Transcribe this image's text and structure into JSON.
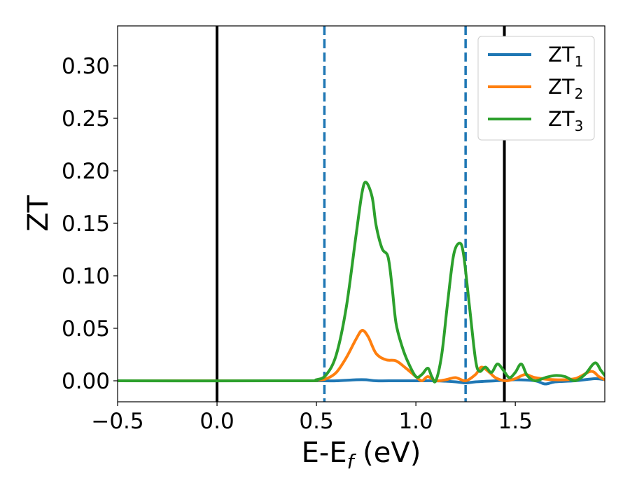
{
  "chart_data": {
    "type": "line",
    "xlabel": {
      "main": "E-E",
      "sub": "f",
      "unit": " (eV)"
    },
    "ylabel": "ZT",
    "xlim": [
      -0.5,
      1.95
    ],
    "ylim": [
      -0.02,
      0.338
    ],
    "xticks": [
      {
        "value": -0.5,
        "label": "−0.5"
      },
      {
        "value": 0.0,
        "label": "0.0"
      },
      {
        "value": 0.5,
        "label": "0.5"
      },
      {
        "value": 1.0,
        "label": "1.0"
      },
      {
        "value": 1.5,
        "label": "1.5"
      }
    ],
    "yticks": [
      {
        "value": 0.0,
        "label": "0.00"
      },
      {
        "value": 0.05,
        "label": "0.05"
      },
      {
        "value": 0.1,
        "label": "0.10"
      },
      {
        "value": 0.15,
        "label": "0.15"
      },
      {
        "value": 0.2,
        "label": "0.20"
      },
      {
        "value": 0.25,
        "label": "0.25"
      },
      {
        "value": 0.3,
        "label": "0.30"
      }
    ],
    "grid": false,
    "legend_position": "top-right",
    "vertical_lines": [
      {
        "x": 0.0,
        "style": "solid",
        "color": "#000000"
      },
      {
        "x": 0.54,
        "style": "dashed",
        "color": "#1f77b4"
      },
      {
        "x": 1.25,
        "style": "dashed",
        "color": "#1f77b4"
      },
      {
        "x": 1.445,
        "style": "solid",
        "color": "#000000"
      }
    ],
    "series": [
      {
        "name": "ZT",
        "name_sub": "1",
        "color": "#1f77b4",
        "x": [
          -0.5,
          0.4,
          0.54,
          0.6,
          0.7,
          0.75,
          0.8,
          0.9,
          1.0,
          1.1,
          1.2,
          1.25,
          1.3,
          1.4,
          1.5,
          1.6,
          1.65,
          1.7,
          1.8,
          1.9,
          1.95
        ],
        "y": [
          0.0,
          0.0,
          0.0,
          0.0,
          0.001,
          0.001,
          0.0,
          0.0,
          0.0,
          0.0,
          -0.001,
          -0.002,
          -0.001,
          0.0,
          0.001,
          0.0,
          -0.003,
          -0.001,
          0.0,
          0.002,
          0.001
        ]
      },
      {
        "name": "ZT",
        "name_sub": "2",
        "color": "#ff7f0e",
        "x": [
          -0.5,
          0.4,
          0.5,
          0.55,
          0.6,
          0.65,
          0.7,
          0.73,
          0.76,
          0.8,
          0.85,
          0.9,
          0.95,
          1.0,
          1.03,
          1.06,
          1.1,
          1.15,
          1.2,
          1.25,
          1.3,
          1.33,
          1.37,
          1.4,
          1.45,
          1.5,
          1.55,
          1.6,
          1.7,
          1.8,
          1.88,
          1.92,
          1.95
        ],
        "y": [
          0.0,
          0.0,
          0.0005,
          0.002,
          0.008,
          0.022,
          0.04,
          0.048,
          0.042,
          0.026,
          0.02,
          0.019,
          0.012,
          0.004,
          0.0,
          0.004,
          0.0,
          0.001,
          0.003,
          0.0,
          0.006,
          0.013,
          0.008,
          0.003,
          0.0,
          0.002,
          0.006,
          0.003,
          0.001,
          0.002,
          0.009,
          0.004,
          0.001
        ]
      },
      {
        "name": "ZT",
        "name_sub": "3",
        "color": "#2ca02c",
        "x": [
          -0.5,
          0.4,
          0.5,
          0.55,
          0.6,
          0.65,
          0.7,
          0.73,
          0.75,
          0.78,
          0.8,
          0.83,
          0.86,
          0.88,
          0.9,
          0.93,
          0.96,
          1.0,
          1.03,
          1.06,
          1.08,
          1.1,
          1.13,
          1.16,
          1.19,
          1.22,
          1.24,
          1.27,
          1.3,
          1.32,
          1.35,
          1.38,
          1.41,
          1.44,
          1.47,
          1.5,
          1.53,
          1.56,
          1.6,
          1.65,
          1.7,
          1.75,
          1.8,
          1.85,
          1.9,
          1.93,
          1.95
        ],
        "y": [
          0.0,
          0.0,
          0.001,
          0.006,
          0.025,
          0.07,
          0.14,
          0.18,
          0.189,
          0.175,
          0.148,
          0.126,
          0.118,
          0.09,
          0.055,
          0.033,
          0.018,
          0.004,
          0.006,
          0.012,
          0.004,
          0.0,
          0.025,
          0.075,
          0.12,
          0.131,
          0.12,
          0.07,
          0.02,
          0.009,
          0.013,
          0.008,
          0.016,
          0.01,
          0.003,
          0.008,
          0.016,
          0.005,
          0.0,
          0.003,
          0.005,
          0.004,
          0.0,
          0.006,
          0.017,
          0.01,
          0.005
        ]
      }
    ]
  }
}
